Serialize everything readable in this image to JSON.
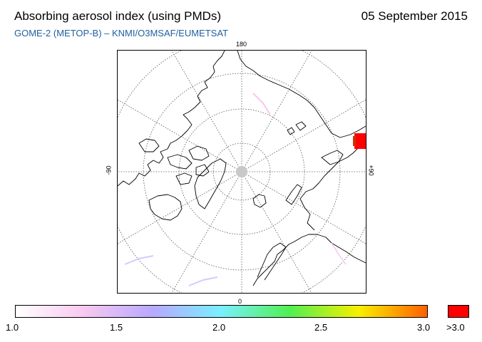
{
  "header": {
    "title": "Absorbing aerosol index (using PMDs)",
    "date": "05 September 2015",
    "subtitle": "GOME-2 (METOP-B)  –   KNMI/O3MSAF/EUMETSAT"
  },
  "map": {
    "projection": "north-polar-stereographic",
    "lon_labels": {
      "top": "180",
      "bottom": "0",
      "left": "-90",
      "right": "+90"
    },
    "colors": {
      "frame": "#000000",
      "graticule": "#555555",
      "coast": "#000000",
      "pole_hole": "#c8c8c8",
      "high_aai": "#ff0000"
    }
  },
  "colorbar": {
    "ticks": [
      "1.0",
      "1.5",
      "2.0",
      "2.5",
      "3.0"
    ],
    "over_label": ">3.0",
    "gradient_colors": [
      "#ffffff",
      "#f7c8f0",
      "#b8a8ff",
      "#78f0ff",
      "#50f050",
      "#f8f000",
      "#ff6000"
    ],
    "over_color": "#ff0000"
  }
}
